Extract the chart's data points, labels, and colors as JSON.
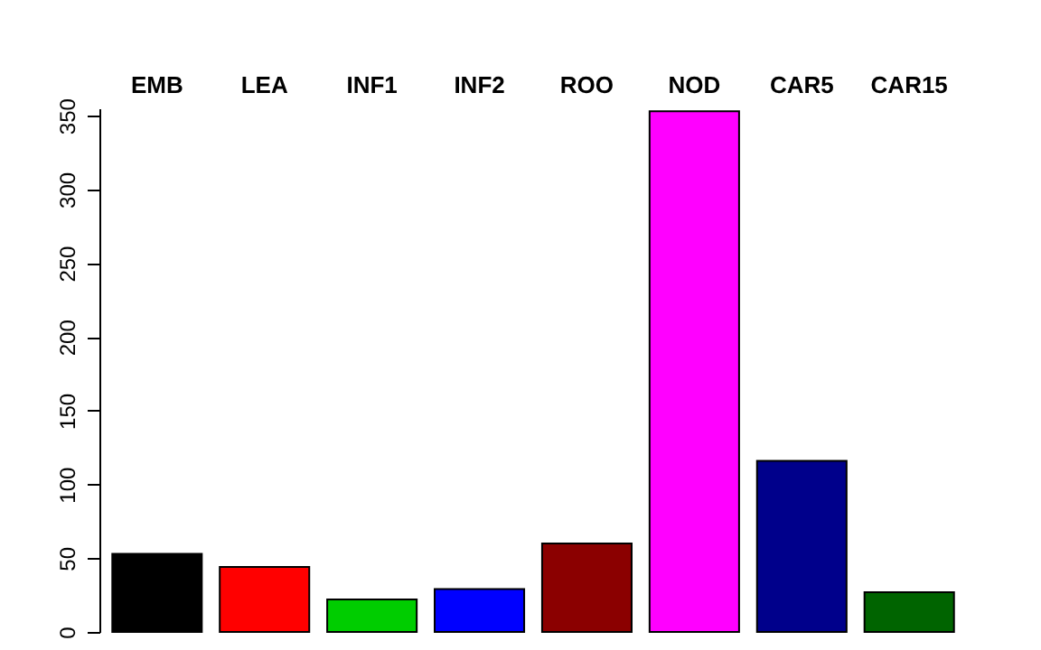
{
  "chart_data": {
    "type": "bar",
    "categories": [
      "EMB",
      "LEA",
      "INF1",
      "INF2",
      "ROO",
      "NOD",
      "CAR5",
      "CAR15"
    ],
    "values": [
      53,
      44,
      22,
      29,
      60,
      353,
      116,
      27
    ],
    "colors": [
      "#000000",
      "#ff0000",
      "#00cd00",
      "#0000ff",
      "#8b0000",
      "#ff00ff",
      "#00008b",
      "#006400"
    ],
    "ylim": [
      0,
      355
    ],
    "yticks": [
      0,
      50,
      100,
      150,
      200,
      250,
      300,
      350
    ],
    "grid": false,
    "legend": false
  }
}
